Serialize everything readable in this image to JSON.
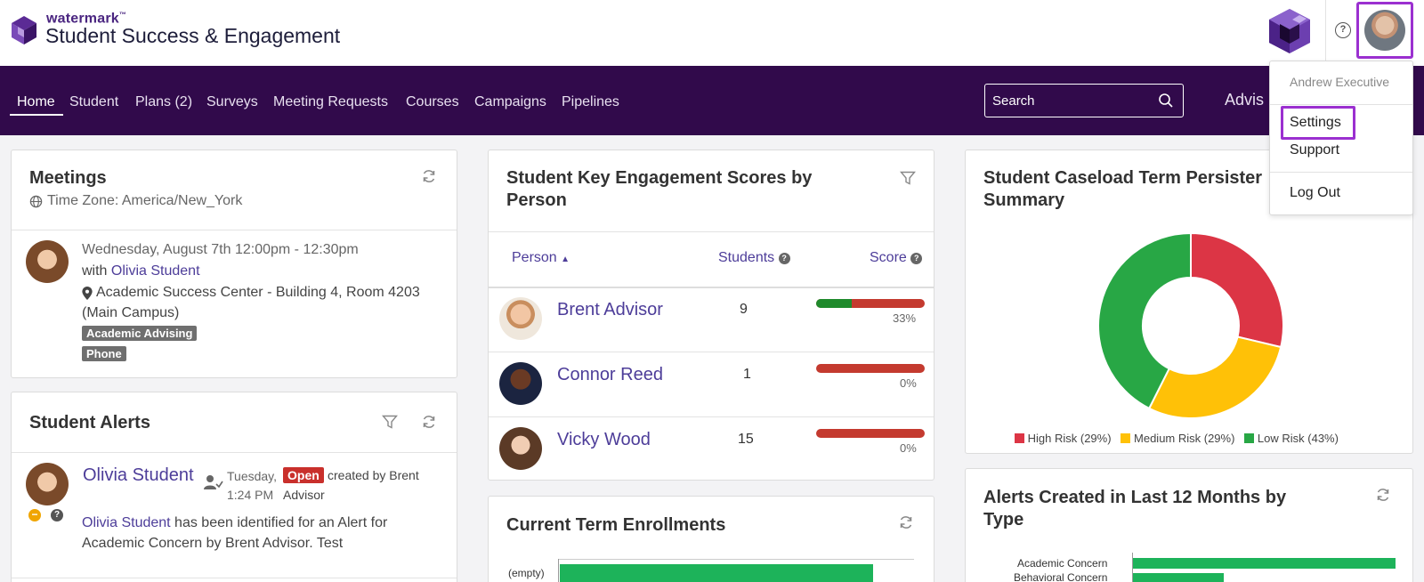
{
  "brand": {
    "company": "watermark",
    "trademark": "™",
    "product": "Student Success & Engagement"
  },
  "user": {
    "name": "Andrew Executive"
  },
  "user_menu": {
    "items": [
      "Settings",
      "Support",
      "Log Out"
    ]
  },
  "help_label": "?",
  "nav": {
    "items": [
      "Home",
      "Student",
      "Plans (2)",
      "Surveys",
      "Meeting Requests",
      "Courses",
      "Campaigns",
      "Pipelines"
    ],
    "active": "Home",
    "search_placeholder": "Search",
    "right_text": "Advis"
  },
  "meetings": {
    "title": "Meetings",
    "timezone": "Time Zone: America/New_York",
    "item": {
      "datetime": "Wednesday, August 7th 12:00pm - 12:30pm",
      "with_label": "with",
      "student": "Olivia Student",
      "location": "Academic Success Center - Building 4, Room 4203",
      "campus": "(Main Campus)",
      "tags": [
        "Academic Advising",
        "Phone"
      ]
    }
  },
  "alerts": {
    "title": "Student Alerts",
    "item": {
      "student": "Olivia Student",
      "day": "Tuesday,",
      "time": "1:24 PM",
      "status": "Open",
      "created_by": "created by Brent",
      "created_by_2": "Advisor",
      "desc_link": "Olivia Student",
      "desc_1": " has been identified for an Alert for",
      "desc_2": "Academic Concern by Brent Advisor. Test",
      "status_color": "#c9302c"
    }
  },
  "engagement": {
    "title_line1": "Student Key Engagement Scores by",
    "title_line2": "Person",
    "columns": {
      "person": "Person",
      "students": "Students",
      "score": "Score"
    },
    "rows": [
      {
        "name": "Brent Advisor",
        "students": "9",
        "score_label": "33%",
        "score": 0.33
      },
      {
        "name": "Connor Reed",
        "students": "1",
        "score_label": "0%",
        "score": 0
      },
      {
        "name": "Vicky Wood",
        "students": "15",
        "score_label": "0%",
        "score": 0
      }
    ]
  },
  "enrollments": {
    "title": "Current Term Enrollments",
    "row_label": "(empty)"
  },
  "persistence": {
    "title_line1": "Student Caseload Term Persister",
    "title_line2": "Summary",
    "chart_data": {
      "type": "pie",
      "slices": [
        {
          "name": "High Risk (29%)",
          "value": 29,
          "color": "#dc3545"
        },
        {
          "name": "Medium Risk (29%)",
          "value": 29,
          "color": "#ffc107"
        },
        {
          "name": "Low Risk (43%)",
          "value": 43,
          "color": "#28a745"
        }
      ],
      "legend": "bottom"
    }
  },
  "alerts_chart": {
    "title_line1": "Alerts Created in Last 12 Months by",
    "title_line2": "Type",
    "categories": [
      "Academic Concern",
      "Behavioral Concern"
    ]
  }
}
